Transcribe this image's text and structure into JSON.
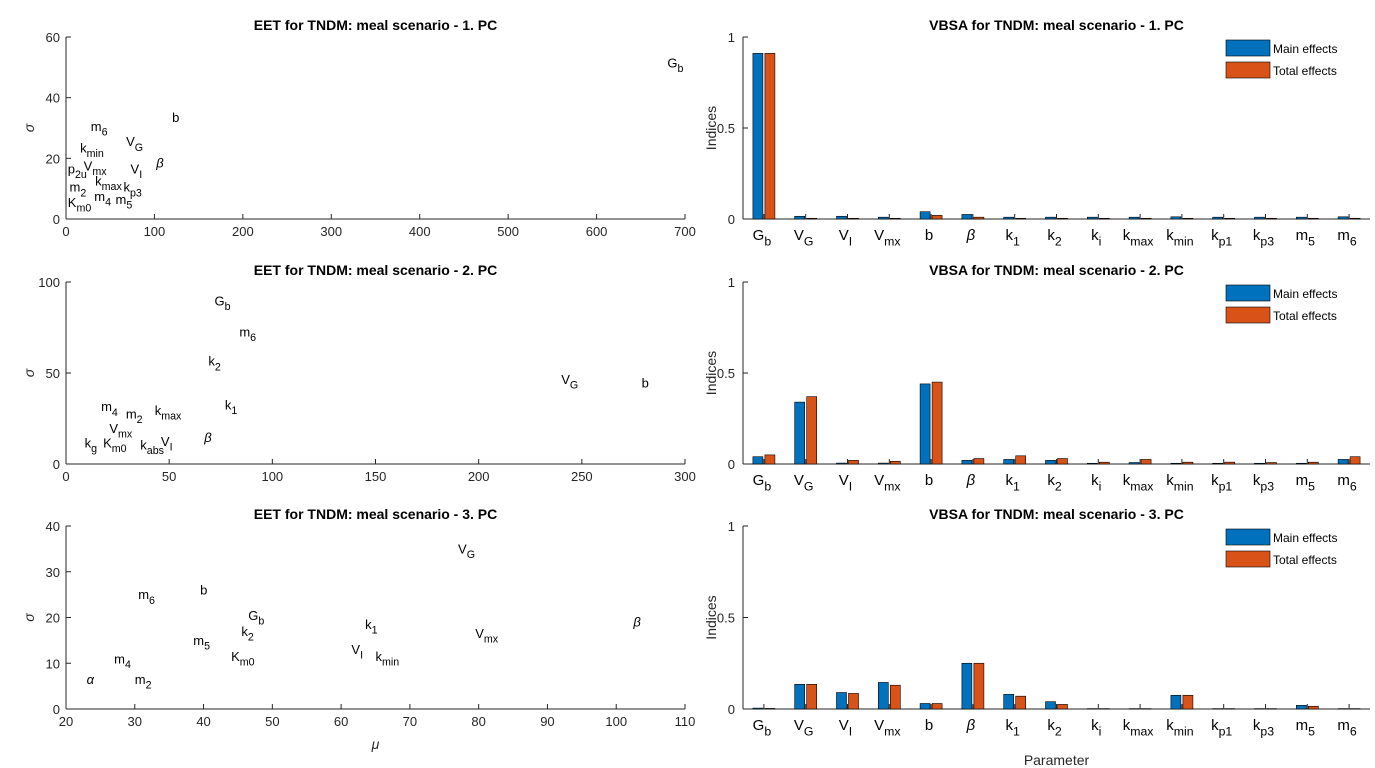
{
  "figure": {
    "colors": {
      "main": "#0072BD",
      "total": "#D95319",
      "axis": "#262626"
    },
    "eet": [
      {
        "title": "EET for TNDM: meal scenario - 1. PC",
        "ylabel": "σ",
        "xlabel": "",
        "xlim": [
          0,
          700
        ],
        "ylim": [
          0,
          60
        ],
        "xticks": [
          0,
          100,
          200,
          300,
          400,
          500,
          600,
          700
        ],
        "yticks": [
          0,
          20,
          40,
          60
        ],
        "points": [
          {
            "base": "G",
            "sub": "b",
            "x": 680,
            "y": 50
          },
          {
            "base": "b",
            "sub": "",
            "x": 120,
            "y": 32
          },
          {
            "base": "m",
            "sub": "6",
            "x": 28,
            "y": 29
          },
          {
            "base": "V",
            "sub": "G",
            "x": 68,
            "y": 24
          },
          {
            "base": "k",
            "sub": "min",
            "x": 16,
            "y": 22
          },
          {
            "base": "β",
            "sub": "",
            "x": 102,
            "y": 17,
            "italic": true
          },
          {
            "base": "p",
            "sub": "2u",
            "x": 2,
            "y": 15
          },
          {
            "base": "V",
            "sub": "mx",
            "x": 20,
            "y": 16
          },
          {
            "base": "V",
            "sub": "I",
            "x": 73,
            "y": 15
          },
          {
            "base": "k",
            "sub": "max",
            "x": 33,
            "y": 11
          },
          {
            "base": "m",
            "sub": "2",
            "x": 4,
            "y": 9
          },
          {
            "base": "k",
            "sub": "p3",
            "x": 65,
            "y": 9
          },
          {
            "base": "m",
            "sub": "4",
            "x": 32,
            "y": 6
          },
          {
            "base": "m",
            "sub": "5",
            "x": 56,
            "y": 5
          },
          {
            "base": "K",
            "sub": "m0",
            "x": 2,
            "y": 4
          }
        ]
      },
      {
        "title": "EET for TNDM: meal scenario - 2. PC",
        "ylabel": "σ",
        "xlabel": "",
        "xlim": [
          0,
          300
        ],
        "ylim": [
          0,
          100
        ],
        "xticks": [
          0,
          50,
          100,
          150,
          200,
          250,
          300
        ],
        "yticks": [
          0,
          50,
          100
        ],
        "points": [
          {
            "base": "G",
            "sub": "b",
            "x": 72,
            "y": 87
          },
          {
            "base": "m",
            "sub": "6",
            "x": 84,
            "y": 70
          },
          {
            "base": "k",
            "sub": "2",
            "x": 69,
            "y": 54
          },
          {
            "base": "V",
            "sub": "G",
            "x": 240,
            "y": 44
          },
          {
            "base": "b",
            "sub": "",
            "x": 279,
            "y": 42
          },
          {
            "base": "k",
            "sub": "1",
            "x": 77,
            "y": 30
          },
          {
            "base": "m",
            "sub": "4",
            "x": 17,
            "y": 29
          },
          {
            "base": "m",
            "sub": "2",
            "x": 29,
            "y": 25
          },
          {
            "base": "k",
            "sub": "max",
            "x": 43,
            "y": 27
          },
          {
            "base": "V",
            "sub": "mx",
            "x": 21,
            "y": 17
          },
          {
            "base": "β",
            "sub": "",
            "x": 67,
            "y": 12,
            "italic": true
          },
          {
            "base": "k",
            "sub": "g",
            "x": 9,
            "y": 9
          },
          {
            "base": "K",
            "sub": "m0",
            "x": 18,
            "y": 9
          },
          {
            "base": "k",
            "sub": "abs",
            "x": 36,
            "y": 8
          },
          {
            "base": "V",
            "sub": "I",
            "x": 46,
            "y": 10
          }
        ]
      },
      {
        "title": "EET for TNDM: meal scenario - 3. PC",
        "ylabel": "σ",
        "xlabel": "μ",
        "xlim": [
          20,
          110
        ],
        "ylim": [
          0,
          40
        ],
        "xticks": [
          20,
          30,
          40,
          50,
          60,
          70,
          80,
          90,
          100,
          110
        ],
        "yticks": [
          0,
          10,
          20,
          30,
          40
        ],
        "points": [
          {
            "base": "V",
            "sub": "G",
            "x": 77,
            "y": 34
          },
          {
            "base": "m",
            "sub": "6",
            "x": 30.5,
            "y": 24
          },
          {
            "base": "b",
            "sub": "",
            "x": 39.5,
            "y": 25
          },
          {
            "base": "G",
            "sub": "b",
            "x": 46.5,
            "y": 19.5
          },
          {
            "base": "β",
            "sub": "",
            "x": 102.5,
            "y": 18,
            "italic": true
          },
          {
            "base": "k",
            "sub": "1",
            "x": 63.5,
            "y": 17.5
          },
          {
            "base": "k",
            "sub": "2",
            "x": 45.5,
            "y": 16
          },
          {
            "base": "V",
            "sub": "mx",
            "x": 79.5,
            "y": 15.5
          },
          {
            "base": "m",
            "sub": "5",
            "x": 38.5,
            "y": 14
          },
          {
            "base": "V",
            "sub": "I",
            "x": 61.5,
            "y": 12
          },
          {
            "base": "k",
            "sub": "min",
            "x": 65,
            "y": 10.5
          },
          {
            "base": "K",
            "sub": "m0",
            "x": 44,
            "y": 10.5
          },
          {
            "base": "m",
            "sub": "4",
            "x": 27,
            "y": 10
          },
          {
            "base": "α",
            "sub": "",
            "x": 23,
            "y": 5.5,
            "italic": true
          },
          {
            "base": "m",
            "sub": "2",
            "x": 30,
            "y": 5.5
          }
        ]
      }
    ],
    "vbsa": [
      {
        "title": "VBSA for TNDM: meal scenario - 1. PC",
        "ylabel": "Indices",
        "xlabel": "",
        "ylim": [
          0,
          1
        ],
        "yticks": [
          "0",
          "0.5",
          "1"
        ],
        "legend": [
          "Main effects",
          "Total effects"
        ],
        "main": [
          0.91,
          0.015,
          0.015,
          0.01,
          0.04,
          0.025,
          0.01,
          0.01,
          0.01,
          0.01,
          0.012,
          0.01,
          0.01,
          0.01,
          0.012
        ],
        "total": [
          0.91,
          0.004,
          0.004,
          0.004,
          0.02,
          0.01,
          0.004,
          0.004,
          0.004,
          0.004,
          0.004,
          0.004,
          0.004,
          0.004,
          0.004
        ]
      },
      {
        "title": "VBSA for TNDM: meal scenario - 2. PC",
        "ylabel": "Indices",
        "xlabel": "",
        "ylim": [
          0,
          1
        ],
        "yticks": [
          "0",
          "0.5",
          "1"
        ],
        "legend": [
          "Main effects",
          "Total effects"
        ],
        "main": [
          0.04,
          0.34,
          0.005,
          0.005,
          0.44,
          0.02,
          0.025,
          0.02,
          0.004,
          0.008,
          0.004,
          0.004,
          0.004,
          0.004,
          0.025
        ],
        "total": [
          0.05,
          0.37,
          0.02,
          0.015,
          0.45,
          0.03,
          0.045,
          0.03,
          0.01,
          0.025,
          0.01,
          0.01,
          0.008,
          0.01,
          0.04
        ]
      },
      {
        "title": "VBSA for TNDM: meal scenario - 3. PC",
        "ylabel": "Indices",
        "xlabel": "Parameter",
        "ylim": [
          0,
          1
        ],
        "yticks": [
          "0",
          "0.5",
          "1"
        ],
        "legend": [
          "Main effects",
          "Total effects"
        ],
        "main": [
          0.005,
          0.135,
          0.09,
          0.145,
          0.03,
          0.25,
          0.08,
          0.04,
          0.002,
          0.002,
          0.075,
          0.002,
          0.002,
          0.02,
          0.002
        ],
        "total": [
          0.003,
          0.135,
          0.085,
          0.13,
          0.03,
          0.25,
          0.07,
          0.025,
          0.002,
          0.002,
          0.075,
          0.002,
          0.002,
          0.015,
          0.002
        ]
      }
    ],
    "parameters": [
      {
        "base": "G",
        "sub": "b"
      },
      {
        "base": "V",
        "sub": "G"
      },
      {
        "base": "V",
        "sub": "I"
      },
      {
        "base": "V",
        "sub": "mx"
      },
      {
        "base": "b",
        "sub": ""
      },
      {
        "base": "β",
        "sub": "",
        "italic": true
      },
      {
        "base": "k",
        "sub": "1"
      },
      {
        "base": "k",
        "sub": "2"
      },
      {
        "base": "k",
        "sub": "i"
      },
      {
        "base": "k",
        "sub": "max"
      },
      {
        "base": "k",
        "sub": "min"
      },
      {
        "base": "k",
        "sub": "p1"
      },
      {
        "base": "k",
        "sub": "p3"
      },
      {
        "base": "m",
        "sub": "5"
      },
      {
        "base": "m",
        "sub": "6"
      }
    ]
  },
  "chart_data": [
    {
      "type": "scatter",
      "title": "EET for TNDM: meal scenario - 1. PC",
      "xlabel": "",
      "ylabel": "σ",
      "xlim": [
        0,
        700
      ],
      "ylim": [
        0,
        60
      ],
      "grid": false,
      "points": [
        {
          "label": "Gb",
          "x": 680,
          "y": 50
        },
        {
          "label": "b",
          "x": 120,
          "y": 32
        },
        {
          "label": "m6",
          "x": 28,
          "y": 29
        },
        {
          "label": "VG",
          "x": 68,
          "y": 24
        },
        {
          "label": "kmin",
          "x": 16,
          "y": 22
        },
        {
          "label": "β",
          "x": 102,
          "y": 17
        },
        {
          "label": "p2u",
          "x": 2,
          "y": 15
        },
        {
          "label": "Vmx",
          "x": 20,
          "y": 16
        },
        {
          "label": "VI",
          "x": 73,
          "y": 15
        },
        {
          "label": "kmax",
          "x": 33,
          "y": 11
        },
        {
          "label": "m2",
          "x": 4,
          "y": 9
        },
        {
          "label": "kp3",
          "x": 65,
          "y": 9
        },
        {
          "label": "m4",
          "x": 32,
          "y": 6
        },
        {
          "label": "m5",
          "x": 56,
          "y": 5
        },
        {
          "label": "Km0",
          "x": 2,
          "y": 4
        }
      ]
    },
    {
      "type": "scatter",
      "title": "EET for TNDM: meal scenario - 2. PC",
      "xlabel": "",
      "ylabel": "σ",
      "xlim": [
        0,
        300
      ],
      "ylim": [
        0,
        100
      ],
      "grid": false,
      "points": [
        {
          "label": "Gb",
          "x": 72,
          "y": 87
        },
        {
          "label": "m6",
          "x": 84,
          "y": 70
        },
        {
          "label": "k2",
          "x": 69,
          "y": 54
        },
        {
          "label": "VG",
          "x": 240,
          "y": 44
        },
        {
          "label": "b",
          "x": 279,
          "y": 42
        },
        {
          "label": "k1",
          "x": 77,
          "y": 30
        },
        {
          "label": "m4",
          "x": 17,
          "y": 29
        },
        {
          "label": "m2",
          "x": 29,
          "y": 25
        },
        {
          "label": "kmax",
          "x": 43,
          "y": 27
        },
        {
          "label": "Vmx",
          "x": 21,
          "y": 17
        },
        {
          "label": "β",
          "x": 67,
          "y": 12
        },
        {
          "label": "kg",
          "x": 9,
          "y": 9
        },
        {
          "label": "Km0",
          "x": 18,
          "y": 9
        },
        {
          "label": "kabs",
          "x": 36,
          "y": 8
        },
        {
          "label": "VI",
          "x": 46,
          "y": 10
        }
      ]
    },
    {
      "type": "scatter",
      "title": "EET for TNDM: meal scenario - 3. PC",
      "xlabel": "μ",
      "ylabel": "σ",
      "xlim": [
        20,
        110
      ],
      "ylim": [
        0,
        40
      ],
      "grid": false,
      "points": [
        {
          "label": "VG",
          "x": 77,
          "y": 34
        },
        {
          "label": "m6",
          "x": 30.5,
          "y": 24
        },
        {
          "label": "b",
          "x": 39.5,
          "y": 25
        },
        {
          "label": "Gb",
          "x": 46.5,
          "y": 19.5
        },
        {
          "label": "β",
          "x": 102.5,
          "y": 18
        },
        {
          "label": "k1",
          "x": 63.5,
          "y": 17.5
        },
        {
          "label": "k2",
          "x": 45.5,
          "y": 16
        },
        {
          "label": "Vmx",
          "x": 79.5,
          "y": 15.5
        },
        {
          "label": "m5",
          "x": 38.5,
          "y": 14
        },
        {
          "label": "VI",
          "x": 61.5,
          "y": 12
        },
        {
          "label": "kmin",
          "x": 65,
          "y": 10.5
        },
        {
          "label": "Km0",
          "x": 44,
          "y": 10.5
        },
        {
          "label": "m4",
          "x": 27,
          "y": 10
        },
        {
          "label": "α",
          "x": 23,
          "y": 5.5
        },
        {
          "label": "m2",
          "x": 30,
          "y": 5.5
        }
      ]
    },
    {
      "type": "bar",
      "title": "VBSA for TNDM: meal scenario - 1. PC",
      "xlabel": "",
      "ylabel": "Indices",
      "ylim": [
        0,
        1
      ],
      "categories": [
        "Gb",
        "VG",
        "VI",
        "Vmx",
        "b",
        "β",
        "k1",
        "k2",
        "ki",
        "kmax",
        "kmin",
        "kp1",
        "kp3",
        "m5",
        "m6"
      ],
      "legend": "top-right",
      "series": [
        {
          "name": "Main effects",
          "values": [
            0.91,
            0.015,
            0.015,
            0.01,
            0.04,
            0.025,
            0.01,
            0.01,
            0.01,
            0.01,
            0.012,
            0.01,
            0.01,
            0.01,
            0.012
          ]
        },
        {
          "name": "Total effects",
          "values": [
            0.91,
            0.004,
            0.004,
            0.004,
            0.02,
            0.01,
            0.004,
            0.004,
            0.004,
            0.004,
            0.004,
            0.004,
            0.004,
            0.004,
            0.004
          ]
        }
      ]
    },
    {
      "type": "bar",
      "title": "VBSA for TNDM: meal scenario - 2. PC",
      "xlabel": "",
      "ylabel": "Indices",
      "ylim": [
        0,
        1
      ],
      "categories": [
        "Gb",
        "VG",
        "VI",
        "Vmx",
        "b",
        "β",
        "k1",
        "k2",
        "ki",
        "kmax",
        "kmin",
        "kp1",
        "kp3",
        "m5",
        "m6"
      ],
      "legend": "top-right",
      "series": [
        {
          "name": "Main effects",
          "values": [
            0.04,
            0.34,
            0.005,
            0.005,
            0.44,
            0.02,
            0.025,
            0.02,
            0.004,
            0.008,
            0.004,
            0.004,
            0.004,
            0.004,
            0.025
          ]
        },
        {
          "name": "Total effects",
          "values": [
            0.05,
            0.37,
            0.02,
            0.015,
            0.45,
            0.03,
            0.045,
            0.03,
            0.01,
            0.025,
            0.01,
            0.01,
            0.008,
            0.01,
            0.04
          ]
        }
      ]
    },
    {
      "type": "bar",
      "title": "VBSA for TNDM: meal scenario - 3. PC",
      "xlabel": "Parameter",
      "ylabel": "Indices",
      "ylim": [
        0,
        1
      ],
      "categories": [
        "Gb",
        "VG",
        "VI",
        "Vmx",
        "b",
        "β",
        "k1",
        "k2",
        "ki",
        "kmax",
        "kmin",
        "kp1",
        "kp3",
        "m5",
        "m6"
      ],
      "legend": "top-right",
      "series": [
        {
          "name": "Main effects",
          "values": [
            0.005,
            0.135,
            0.09,
            0.145,
            0.03,
            0.25,
            0.08,
            0.04,
            0.002,
            0.002,
            0.075,
            0.002,
            0.002,
            0.02,
            0.002
          ]
        },
        {
          "name": "Total effects",
          "values": [
            0.003,
            0.135,
            0.085,
            0.13,
            0.03,
            0.25,
            0.07,
            0.025,
            0.002,
            0.002,
            0.075,
            0.002,
            0.002,
            0.015,
            0.002
          ]
        }
      ]
    }
  ]
}
